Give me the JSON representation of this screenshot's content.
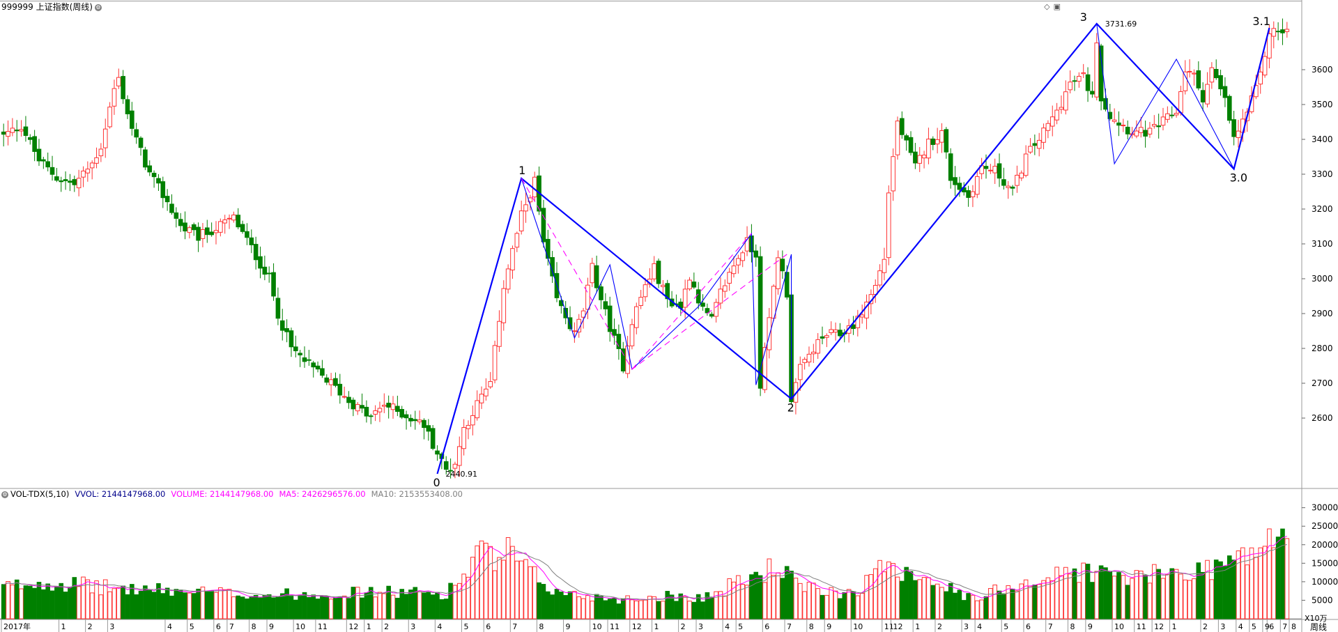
{
  "header": {
    "title": "999999 上证指数(周线)",
    "vol_label": "VOL-TDX(5,10)",
    "vvol": "VVOL: 2144147968.00",
    "volume": "VOLUME: 2144147968.00",
    "ma5": "MA5: 2426296576.00",
    "ma10": "MA10: 2153553408.00"
  },
  "colors": {
    "up": "#ff3232",
    "down": "#008000",
    "wave": "#0000ff",
    "pink": "#ff00ff",
    "ma10": "#808080"
  },
  "chart_data": [
    {
      "type": "candlestick",
      "yticks": [
        2600,
        2700,
        2800,
        2900,
        3000,
        3100,
        3200,
        3300,
        3400,
        3500,
        3600
      ],
      "ylim": [
        2420,
        3760
      ],
      "price_anchors": [
        [
          0,
          3410
        ],
        [
          4,
          3440
        ],
        [
          8,
          3340
        ],
        [
          12,
          3290
        ],
        [
          16,
          3270
        ],
        [
          20,
          3330
        ],
        [
          22,
          3380
        ],
        [
          25,
          3545
        ],
        [
          26,
          3573
        ],
        [
          27,
          3525
        ],
        [
          29,
          3430
        ],
        [
          33,
          3300
        ],
        [
          37,
          3220
        ],
        [
          40,
          3150
        ],
        [
          44,
          3120
        ],
        [
          48,
          3145
        ],
        [
          52,
          3175
        ],
        [
          55,
          3110
        ],
        [
          60,
          3000
        ],
        [
          62,
          2900
        ],
        [
          65,
          2800
        ],
        [
          70,
          2740
        ],
        [
          74,
          2700
        ],
        [
          78,
          2650
        ],
        [
          83,
          2600
        ],
        [
          86,
          2640
        ],
        [
          89,
          2620
        ],
        [
          92,
          2600
        ],
        [
          95,
          2580
        ],
        [
          98,
          2500
        ],
        [
          100,
          2450
        ],
        [
          102,
          2470
        ],
        [
          104,
          2570
        ],
        [
          107,
          2640
        ],
        [
          110,
          2700
        ],
        [
          113,
          2980
        ],
        [
          117,
          3180
        ],
        [
          120,
          3280
        ],
        [
          122,
          3100
        ],
        [
          125,
          2940
        ],
        [
          129,
          2840
        ],
        [
          131,
          2910
        ],
        [
          133,
          3030
        ],
        [
          136,
          2900
        ],
        [
          140,
          2750
        ],
        [
          142,
          2880
        ],
        [
          145,
          2980
        ],
        [
          147,
          3030
        ],
        [
          150,
          2940
        ],
        [
          153,
          2920
        ],
        [
          155,
          3010
        ],
        [
          158,
          2910
        ],
        [
          160,
          2880
        ],
        [
          162,
          2960
        ],
        [
          165,
          3040
        ],
        [
          168,
          3105
        ],
        [
          170,
          3070
        ],
        [
          171,
          2700
        ],
        [
          173,
          2880
        ],
        [
          175,
          3070
        ],
        [
          177,
          2960
        ],
        [
          178,
          2655
        ],
        [
          180,
          2740
        ],
        [
          183,
          2800
        ],
        [
          186,
          2840
        ],
        [
          189,
          2840
        ],
        [
          193,
          2880
        ],
        [
          197,
          2980
        ],
        [
          199,
          3060
        ],
        [
          200,
          3250
        ],
        [
          202,
          3450
        ],
        [
          206,
          3320
        ],
        [
          209,
          3390
        ],
        [
          212,
          3420
        ],
        [
          214,
          3290
        ],
        [
          218,
          3235
        ],
        [
          221,
          3320
        ],
        [
          224,
          3310
        ],
        [
          228,
          3250
        ],
        [
          231,
          3350
        ],
        [
          235,
          3420
        ],
        [
          238,
          3480
        ],
        [
          241,
          3560
        ],
        [
          244,
          3580
        ],
        [
          246,
          3520
        ],
        [
          247,
          3690
        ],
        [
          248,
          3520
        ],
        [
          250,
          3470
        ],
        [
          254,
          3430
        ],
        [
          256,
          3420
        ],
        [
          259,
          3420
        ],
        [
          262,
          3450
        ],
        [
          265,
          3480
        ],
        [
          267,
          3600
        ],
        [
          269,
          3580
        ],
        [
          271,
          3520
        ],
        [
          273,
          3600
        ],
        [
          276,
          3510
        ],
        [
          278,
          3400
        ],
        [
          280,
          3450
        ],
        [
          282,
          3510
        ],
        [
          284,
          3580
        ],
        [
          286,
          3710
        ]
      ],
      "volume_anchors": [
        [
          0,
          85
        ],
        [
          10,
          100
        ],
        [
          25,
          82
        ],
        [
          60,
          64
        ],
        [
          85,
          72
        ],
        [
          100,
          68
        ],
        [
          105,
          130
        ],
        [
          107,
          182
        ],
        [
          109,
          170
        ],
        [
          112,
          150
        ],
        [
          114,
          180
        ],
        [
          118,
          132
        ],
        [
          125,
          70
        ],
        [
          135,
          58
        ],
        [
          140,
          52
        ],
        [
          150,
          62
        ],
        [
          158,
          58
        ],
        [
          162,
          72
        ],
        [
          165,
          95
        ],
        [
          170,
          115
        ],
        [
          174,
          140
        ],
        [
          176,
          130
        ],
        [
          180,
          85
        ],
        [
          185,
          75
        ],
        [
          190,
          70
        ],
        [
          193,
          80
        ],
        [
          198,
          130
        ],
        [
          200,
          168
        ],
        [
          202,
          140
        ],
        [
          205,
          125
        ],
        [
          210,
          115
        ],
        [
          213,
          85
        ],
        [
          216,
          65
        ],
        [
          220,
          50
        ],
        [
          225,
          82
        ],
        [
          230,
          98
        ],
        [
          235,
          105
        ],
        [
          240,
          125
        ],
        [
          245,
          130
        ],
        [
          250,
          118
        ],
        [
          255,
          110
        ],
        [
          260,
          118
        ],
        [
          265,
          125
        ],
        [
          270,
          130
        ],
        [
          275,
          148
        ],
        [
          280,
          165
        ],
        [
          283,
          185
        ],
        [
          286,
          210
        ]
      ],
      "labels": [
        {
          "text": "0",
          "at": [
            98,
            2440
          ]
        },
        {
          "text": "2440.91",
          "at": [
            98,
            2440
          ]
        },
        {
          "text": "1",
          "at": [
            117,
            3288
          ]
        },
        {
          "text": "2",
          "at": [
            178,
            2655
          ]
        },
        {
          "text": "3",
          "at": [
            247,
            3732
          ]
        },
        {
          "text": "3731.69",
          "at": [
            247,
            3732
          ]
        },
        {
          "text": "3.0",
          "at": [
            278,
            3315
          ]
        },
        {
          "text": "3.1",
          "at": [
            286,
            3720
          ]
        }
      ],
      "wave_lines": [
        {
          "color": "#0000ff",
          "width": 2.2,
          "dash": "",
          "points": [
            [
              98,
              2440
            ],
            [
              117,
              3288
            ],
            [
              178,
              2655
            ],
            [
              247,
              3732
            ],
            [
              278,
              3315
            ],
            [
              286,
              3720
            ]
          ]
        },
        {
          "color": "#0000ff",
          "width": 1.1,
          "dash": "",
          "points": [
            [
              117,
              3288
            ],
            [
              129,
              2830
            ],
            [
              137,
              3040
            ],
            [
              142,
              2740
            ],
            [
              157,
              2920
            ],
            [
              169,
              3130
            ],
            [
              170,
              2695
            ],
            [
              178,
              3070
            ],
            [
              178,
              2655
            ]
          ]
        },
        {
          "color": "#0000ff",
          "width": 1.1,
          "dash": "",
          "points": [
            [
              247,
              3732
            ],
            [
              251,
              3330
            ],
            [
              265,
              3630
            ],
            [
              278,
              3315
            ],
            [
              286,
              3720
            ]
          ]
        },
        {
          "color": "#ff00ff",
          "width": 1.1,
          "dash": "9,6",
          "points": [
            [
              117,
              3288
            ],
            [
              142,
              2740
            ],
            [
              177,
              3070
            ]
          ]
        },
        {
          "color": "#ff00ff",
          "width": 1.1,
          "dash": "9,6",
          "points": [
            [
              142,
              2740
            ],
            [
              169,
              3130
            ]
          ]
        }
      ]
    },
    {
      "type": "bar",
      "yticks": [
        5000,
        10000,
        15000,
        20000,
        25000,
        30000
      ],
      "unit": "X10万",
      "series": [
        "VOLUME",
        "MA5",
        "MA10"
      ]
    }
  ],
  "xaxis": {
    "labels": [
      {
        "text": "2017年",
        "week": 0
      },
      {
        "text": "1",
        "week": 13
      },
      {
        "text": "2",
        "week": 19
      },
      {
        "text": "3",
        "week": 24
      },
      {
        "text": "4",
        "week": 37
      },
      {
        "text": "5",
        "week": 42
      },
      {
        "text": "6",
        "week": 48
      },
      {
        "text": "7",
        "week": 51
      },
      {
        "text": "8",
        "week": 56
      },
      {
        "text": "9",
        "week": 60
      },
      {
        "text": "10",
        "week": 66
      },
      {
        "text": "11",
        "week": 71
      },
      {
        "text": "12",
        "week": 78
      },
      {
        "text": "1",
        "week": 82
      },
      {
        "text": "2",
        "week": 86
      },
      {
        "text": "3",
        "week": 92
      },
      {
        "text": "4",
        "week": 98
      },
      {
        "text": "5",
        "week": 104
      },
      {
        "text": "6",
        "week": 109
      },
      {
        "text": "7",
        "week": 115
      },
      {
        "text": "8",
        "week": 121
      },
      {
        "text": "9",
        "week": 127
      },
      {
        "text": "10",
        "week": 133
      },
      {
        "text": "11",
        "week": 137
      },
      {
        "text": "12",
        "week": 142
      },
      {
        "text": "1",
        "week": 147
      },
      {
        "text": "2",
        "week": 153
      },
      {
        "text": "3",
        "week": 157
      },
      {
        "text": "4",
        "week": 163
      },
      {
        "text": "5",
        "week": 166
      },
      {
        "text": "6",
        "week": 172
      },
      {
        "text": "7",
        "week": 177
      },
      {
        "text": "8",
        "week": 182
      },
      {
        "text": "9",
        "week": 186
      },
      {
        "text": "10",
        "week": 192
      },
      {
        "text": "11",
        "week": 199
      },
      {
        "text": "12",
        "week": 201
      },
      {
        "text": "1",
        "week": 206
      },
      {
        "text": "2",
        "week": 211
      },
      {
        "text": "3",
        "week": 217
      },
      {
        "text": "4",
        "week": 220
      },
      {
        "text": "5",
        "week": 226
      },
      {
        "text": "6",
        "week": 231
      },
      {
        "text": "7",
        "week": 236
      },
      {
        "text": "8",
        "week": 241
      },
      {
        "text": "9",
        "week": 245
      },
      {
        "text": "10",
        "week": 251
      },
      {
        "text": "11",
        "week": 256
      },
      {
        "text": "12",
        "week": 260
      },
      {
        "text": "1",
        "week": 264
      },
      {
        "text": "2",
        "week": 271
      },
      {
        "text": "3",
        "week": 275
      },
      {
        "text": "4",
        "week": 279
      },
      {
        "text": "5",
        "week": 282
      },
      {
        "text": "6",
        "week": 286
      },
      {
        "text": "7",
        "week": 289
      },
      {
        "text": "8",
        "week": 291
      },
      {
        "text": "9",
        "week": 285
      },
      {
        "text": "周线",
        "week": -1
      }
    ]
  }
}
